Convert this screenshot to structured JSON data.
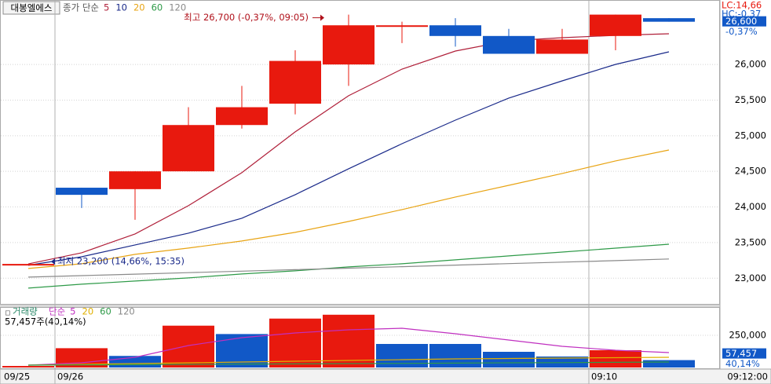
{
  "chart_data": [
    {
      "type": "candlestick",
      "title": "대봉엘에스",
      "legend_title": "종가 단순",
      "categories": [
        "09/25",
        "09/26",
        null,
        null,
        null,
        null,
        null,
        null,
        null,
        null,
        null,
        "09:10",
        null
      ],
      "open": [
        23200,
        24270,
        24250,
        24500,
        25150,
        25450,
        26000,
        26550,
        26550,
        26400,
        26150,
        26400,
        26650
      ],
      "high": [
        23200,
        24270,
        24500,
        25400,
        25700,
        26200,
        26700,
        26600,
        26650,
        26500,
        26500,
        26700,
        26650
      ],
      "low": [
        23200,
        23985,
        23820,
        24500,
        25100,
        25300,
        25700,
        26300,
        26250,
        26150,
        26150,
        26200,
        26600
      ],
      "close": [
        23200,
        24170,
        24500,
        25150,
        25400,
        26050,
        26550,
        26550,
        26400,
        26150,
        26350,
        26700,
        26600
      ],
      "up_color": "#e8190e",
      "down_color": "#1158c7",
      "series": [
        {
          "name": "5",
          "color": "#b0203a",
          "values": [
            23200,
            23357,
            23621,
            24018,
            24481,
            25054,
            25561,
            25935,
            26189,
            26332,
            26376,
            26409,
            26431
          ]
        },
        {
          "name": "10",
          "color": "#1a2a8a",
          "values": [
            23180,
            23300,
            23467,
            23632,
            23842,
            24172,
            24536,
            24888,
            25219,
            25528,
            25770,
            26001,
            26178
          ]
        },
        {
          "name": "20",
          "color": "#e8a414",
          "values": [
            23136,
            23202,
            23335,
            23423,
            23522,
            23643,
            23797,
            23963,
            24139,
            24304,
            24470,
            24646,
            24800
          ]
        },
        {
          "name": "60",
          "color": "#2e9a48",
          "values": [
            22861,
            22916,
            22960,
            23004,
            23059,
            23103,
            23158,
            23202,
            23257,
            23312,
            23367,
            23422,
            23477
          ]
        },
        {
          "name": "120",
          "color": "#8a8a8a",
          "values": [
            23015,
            23036,
            23057,
            23078,
            23099,
            23120,
            23141,
            23162,
            23183,
            23204,
            23225,
            23246,
            23269
          ]
        }
      ],
      "ylim": [
        22650,
        26850
      ],
      "yticks": [
        {
          "value": 23000,
          "label": "23,000"
        },
        {
          "value": 23500,
          "label": "23,500"
        },
        {
          "value": 24000,
          "label": "24,000"
        },
        {
          "value": 24500,
          "label": "24,500"
        },
        {
          "value": 25000,
          "label": "25,000"
        },
        {
          "value": 25500,
          "label": "25,500"
        },
        {
          "value": 26000,
          "label": "26,000"
        }
      ],
      "grid": true,
      "high_annotation": {
        "value": 26700,
        "label": "최고 26,700 (-0,37%, 09:05)"
      },
      "low_annotation": {
        "value": 23200,
        "label": "최저 23,200 (14,66%, 15:35)"
      },
      "lc_label": "LC:14,66",
      "hc_label": "HC:-0,37",
      "last_price": {
        "value": 26600,
        "label": "26,600"
      },
      "last_change": "-0,37%",
      "time_label": "09:12:00"
    },
    {
      "type": "bar",
      "title": "거래량",
      "legend_title": "단순",
      "values": [
        12000,
        150000,
        90000,
        325000,
        260000,
        380000,
        410000,
        183000,
        183000,
        122000,
        85400,
        134200,
        57457
      ],
      "colors": [
        "#e8190e",
        "#e8190e",
        "#1158c7",
        "#e8190e",
        "#1158c7",
        "#e8190e",
        "#e8190e",
        "#1158c7",
        "#1158c7",
        "#1158c7",
        "#1158c7",
        "#e8190e",
        "#1158c7"
      ],
      "series": [
        {
          "name": "5",
          "color": "#c030c0",
          "values": [
            18300,
            36600,
            79300,
            170800,
            231800,
            268400,
            292800,
            305000,
            262300,
            213500,
            164700,
            134200,
            115900
          ]
        },
        {
          "name": "20",
          "color": "#e0b000",
          "values": [
            18300,
            24400,
            30500,
            36600,
            42700,
            48800,
            54900,
            61000,
            67100,
            70000,
            73200,
            76000,
            79300
          ]
        },
        {
          "name": "60",
          "color": "#2e9a48",
          "values": [
            18300,
            20000,
            22000,
            24400,
            26000,
            28000,
            30500,
            32000,
            34000,
            36600,
            38000,
            40000,
            42700
          ]
        },
        {
          "name": "120",
          "color": "#8a8a8a",
          "values": [
            null,
            null,
            null,
            null,
            null,
            null,
            null,
            null,
            null,
            null,
            null,
            null,
            null
          ]
        }
      ],
      "ylim": [
        0,
        427000
      ],
      "yticks": [
        {
          "value": 250000,
          "label": "250,000"
        }
      ],
      "grid": true,
      "value_summary": "57,457주(40,14%)",
      "last_value": {
        "value": 57457,
        "label": "57,457"
      },
      "last_change": "40,14%"
    }
  ]
}
